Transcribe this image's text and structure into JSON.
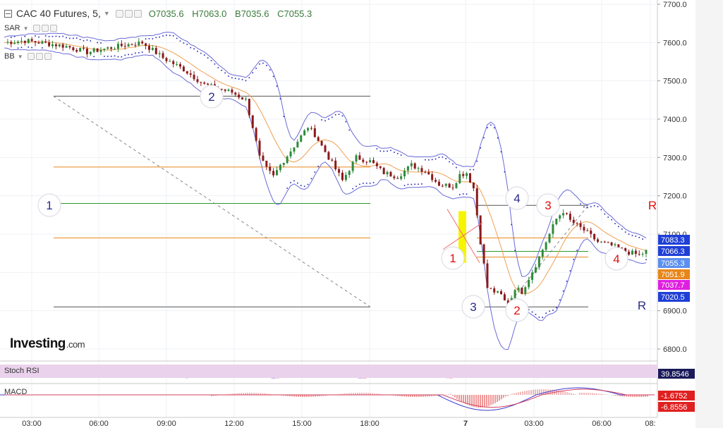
{
  "header": {
    "symbol": "CAC 40 Futures, 5,",
    "open": "O7035.6",
    "high": "H7063.0",
    "low": "B7035.6",
    "close": "C7055.3"
  },
  "indicators": {
    "sar": "SAR",
    "bb": "BB",
    "stoch": "Stoch RSI",
    "macd": "MACD"
  },
  "logo": {
    "name": "Investing",
    "suffix": ".com"
  },
  "colors": {
    "up": "#2e8b3a",
    "down": "#8b1a1a",
    "bb": "#6a6ad8",
    "sar": "#1f1fb5",
    "fib": "#e8861a",
    "fib_green": "#2a9a2a",
    "fib_gray": "#555555",
    "wave_blue": "#2a2a8a",
    "wave_red": "#e01010"
  },
  "chart_data": [
    {
      "type": "candlestick",
      "title": "CAC 40 Futures, 5,",
      "y_ticks": [
        "7700.0",
        "7600.0",
        "7500.0",
        "7400.0",
        "7300.0",
        "7200.0",
        "7100.0",
        "7000.0",
        "6900.0",
        "6800.0"
      ],
      "ylim": [
        6760,
        7710
      ],
      "x_ticks": [
        "03:00",
        "06:00",
        "09:00",
        "12:00",
        "15:00",
        "18:00",
        "7",
        "03:00",
        "06:00",
        "08:"
      ],
      "price_labels": [
        {
          "value": 7083.3,
          "text": "7083.3",
          "color": "#1f3fd6"
        },
        {
          "value": 7066.3,
          "text": "7066.3",
          "color": "#1f3fd6"
        },
        {
          "value": 7055.3,
          "text": "7055.3",
          "color": "#5b8ff0"
        },
        {
          "value": 7051.9,
          "text": "7051.9",
          "color": "#e8861a"
        },
        {
          "value": 7037.7,
          "text": "7037.7",
          "color": "#e020e0"
        },
        {
          "value": 7020.5,
          "text": "7020.5",
          "color": "#1f3fd6"
        }
      ],
      "price_path": [
        [
          0,
          7600
        ],
        [
          3,
          7605
        ],
        [
          6,
          7598
        ],
        [
          9,
          7590
        ],
        [
          12,
          7575
        ],
        [
          15,
          7585
        ],
        [
          18,
          7595
        ],
        [
          20,
          7600
        ],
        [
          23,
          7560
        ],
        [
          26,
          7530
        ],
        [
          29,
          7490
        ],
        [
          31,
          7480
        ],
        [
          33,
          7470
        ],
        [
          35,
          7450
        ],
        [
          36,
          7380
        ],
        [
          37,
          7300
        ],
        [
          38,
          7270
        ],
        [
          39,
          7250
        ],
        [
          40,
          7280
        ],
        [
          42,
          7330
        ],
        [
          44,
          7380
        ],
        [
          45,
          7360
        ],
        [
          47,
          7300
        ],
        [
          49,
          7240
        ],
        [
          51,
          7300
        ],
        [
          53,
          7290
        ],
        [
          55,
          7260
        ],
        [
          57,
          7250
        ],
        [
          59,
          7280
        ],
        [
          61,
          7265
        ],
        [
          63,
          7230
        ],
        [
          65,
          7225
        ],
        [
          66,
          7255
        ],
        [
          67,
          7260
        ],
        [
          68,
          7220
        ],
        [
          69,
          7080
        ],
        [
          70,
          6960
        ],
        [
          72,
          6940
        ],
        [
          73,
          6910
        ],
        [
          74,
          6960
        ],
        [
          75,
          6950
        ],
        [
          77,
          7020
        ],
        [
          79,
          7100
        ],
        [
          80,
          7140
        ],
        [
          81,
          7160
        ],
        [
          82,
          7135
        ],
        [
          84,
          7110
        ],
        [
          86,
          7080
        ],
        [
          88,
          7070
        ],
        [
          90,
          7055
        ],
        [
          92,
          7045
        ],
        [
          93,
          7055
        ]
      ],
      "annotations": [
        {
          "label": "1",
          "color": "blue",
          "price": 7180
        },
        {
          "label": "2",
          "color": "blue",
          "price": 7465
        },
        {
          "label": "3",
          "color": "blue",
          "price": 6910
        },
        {
          "label": "4",
          "color": "blue",
          "price": 7190
        },
        {
          "label": "1",
          "color": "red",
          "price": 7045
        },
        {
          "label": "2",
          "color": "red",
          "price": 6905
        },
        {
          "label": "3",
          "color": "red",
          "price": 7170
        },
        {
          "label": "4",
          "color": "red",
          "price": 7040
        },
        {
          "label": "R",
          "color": "red",
          "price": 7165
        },
        {
          "label": "R",
          "color": "blue",
          "price": 6915
        }
      ]
    },
    {
      "type": "line",
      "title": "Stoch RSI",
      "value_label": "39.8546"
    },
    {
      "type": "bar",
      "title": "MACD",
      "value_labels": [
        "-1.6752",
        "-6.8556"
      ]
    }
  ]
}
